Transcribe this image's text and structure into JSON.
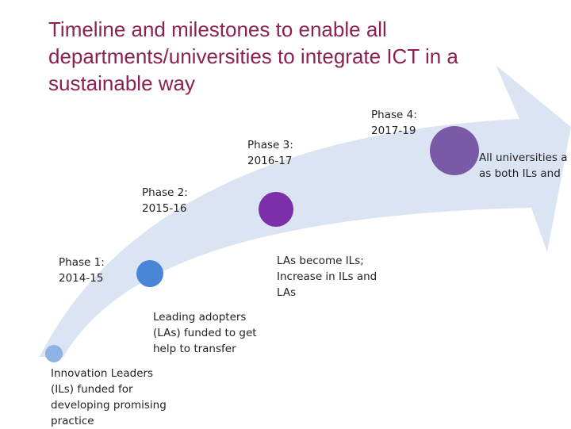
{
  "title": "Timeline and milestones to enable all departments/universities to integrate ICT in a sustainable way",
  "phases": [
    {
      "label": "Phase 1:\n2014-15",
      "color": "#4a86d8",
      "note": "Leading adopters\n(LAs) funded to get\nhelp to transfer"
    },
    {
      "label": "Phase 2:\n2015-16",
      "color": "#7b2fa8",
      "note": "LAs become ILs;\nIncrease in ILs and\nLAs"
    },
    {
      "label": "Phase 3:\n2016-17",
      "color": "#7a5aa6",
      "note": "All universities a\nas both ILs and"
    },
    {
      "label": "Phase 4:\n2017-19"
    }
  ],
  "start": {
    "color": "#8fb3e4",
    "note": "Innovation Leaders\n(ILs) funded for\ndeveloping promising\npractice"
  },
  "arrow_color": "#dbe4f2"
}
